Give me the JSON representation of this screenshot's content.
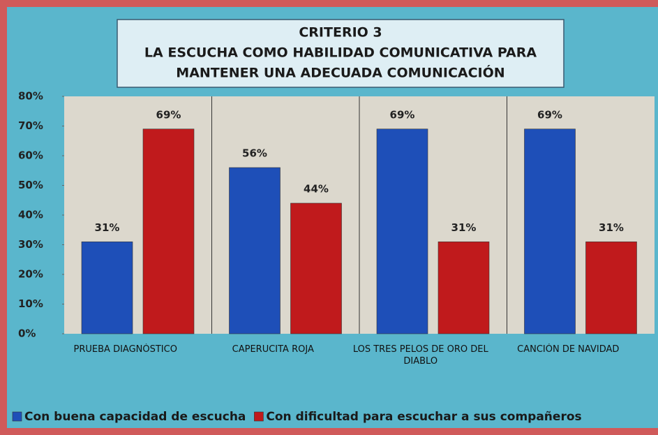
{
  "chart_data": {
    "type": "bar",
    "title": [
      "CRITERIO 3",
      "LA ESCUCHA COMO HABILIDAD COMUNICATIVA PARA",
      "MANTENER UNA ADECUADA COMUNICACIÓN"
    ],
    "categories": [
      "PRUEBA DIAGNÓSTICO",
      "CAPERUCITA ROJA",
      "LOS TRES PELOS DE ORO DEL DIABLO",
      "CANCIÓN DE NAVIDAD"
    ],
    "series": [
      {
        "name": "Con buena capacidad de escucha",
        "color": "#1e4fb8",
        "values": [
          31,
          56,
          69,
          69
        ],
        "value_labels": [
          "31%",
          "56%",
          "69%",
          "69%"
        ]
      },
      {
        "name": "Con dificultad para escuchar a sus compañeros",
        "color": "#c01a1c",
        "values": [
          69,
          44,
          31,
          31
        ],
        "value_labels": [
          "69%",
          "44%",
          "31%",
          "31%"
        ]
      }
    ],
    "ylim": [
      0,
      80
    ],
    "yticks": [
      {
        "value": 0,
        "label": "0%"
      },
      {
        "value": 10,
        "label": "10%"
      },
      {
        "value": 20,
        "label": "20%"
      },
      {
        "value": 30,
        "label": "30%"
      },
      {
        "value": 40,
        "label": "40%"
      },
      {
        "value": 50,
        "label": "50%"
      },
      {
        "value": 60,
        "label": "60%"
      },
      {
        "value": 70,
        "label": "70%"
      },
      {
        "value": 80,
        "label": "80%"
      }
    ],
    "legend": "bottom"
  }
}
